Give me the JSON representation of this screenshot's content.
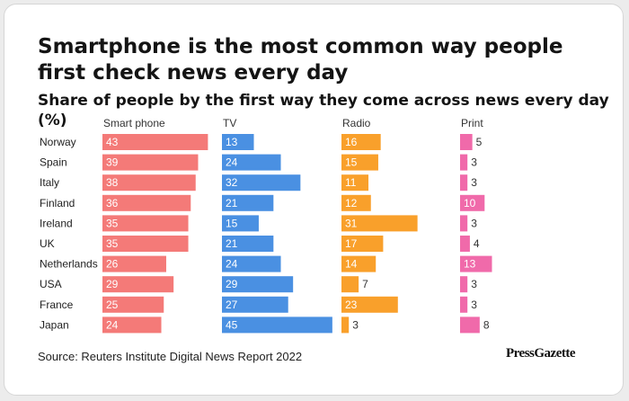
{
  "title": "Smartphone is the most common way people first check news every day",
  "subtitle": "Share of people by the first way they come across news every day (%)",
  "source": "Source: Reuters Institute Digital News Report 2022",
  "brand": "PressGazette",
  "colors": {
    "smartphone": "#f47a78",
    "tv": "#4a90e2",
    "radio": "#f9a02b",
    "print": "#f06aaa"
  },
  "chart_data": {
    "type": "bar",
    "orientation": "horizontal",
    "title": "Smartphone is the most common way people first check news every day",
    "subtitle": "Share of people by the first way they come across news every day (%)",
    "categories": [
      "Norway",
      "Spain",
      "Italy",
      "Finland",
      "Ireland",
      "UK",
      "Netherlands",
      "USA",
      "France",
      "Japan"
    ],
    "series": [
      {
        "name": "Smart phone",
        "values": [
          43,
          39,
          38,
          36,
          35,
          35,
          26,
          29,
          25,
          24
        ]
      },
      {
        "name": "TV",
        "values": [
          13,
          24,
          32,
          21,
          15,
          21,
          24,
          29,
          27,
          45
        ]
      },
      {
        "name": "Radio",
        "values": [
          16,
          15,
          11,
          12,
          31,
          17,
          14,
          7,
          23,
          3
        ]
      },
      {
        "name": "Print",
        "values": [
          5,
          3,
          3,
          10,
          3,
          4,
          13,
          3,
          3,
          8
        ]
      }
    ],
    "xlabel": "",
    "ylabel": "",
    "units": "%"
  }
}
